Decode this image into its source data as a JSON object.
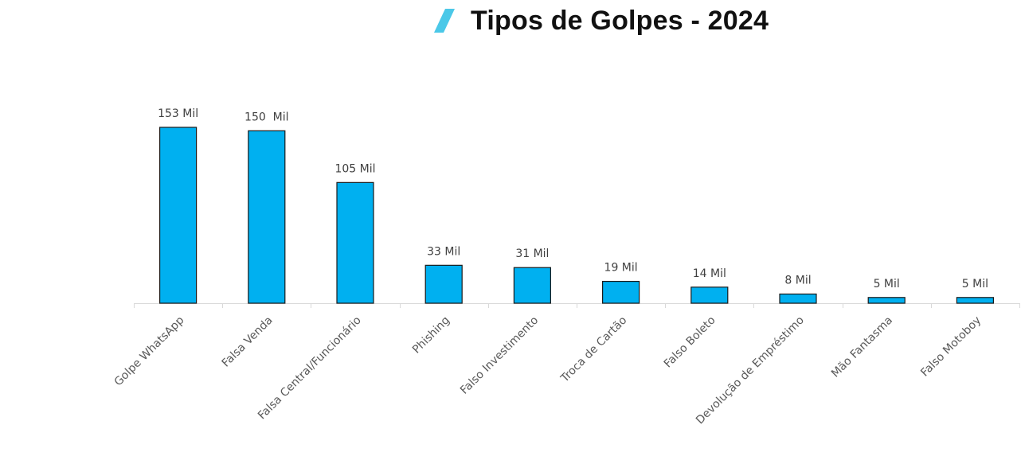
{
  "chart_data": {
    "type": "bar",
    "title": "Tipos de Golpes - 2024",
    "xlabel": "",
    "ylabel": "",
    "unit": "Mil",
    "ylim": [
      0,
      160
    ],
    "grid": false,
    "legend": "none",
    "bar_color": "#00B0F0",
    "bar_edge_color": "#1a1a1a",
    "accent_color": "#4BC8E8",
    "categories": [
      "Golpe WhatsApp",
      "Falsa Venda",
      "Falsa Central/Funcionário",
      "Phishing",
      "Falso Investimento",
      "Troca de Cartão",
      "Falso Boleto",
      "Devolução de Empréstimo",
      "Mão Fantasma",
      "Falso Motoboy"
    ],
    "values": [
      153,
      150,
      105,
      33,
      31,
      19,
      14,
      8,
      5,
      5
    ],
    "data_labels": [
      "153 Mil",
      "150  Mil",
      "105 Mil",
      "33 Mil",
      "31 Mil",
      "19 Mil",
      "14 Mil",
      "8 Mil",
      "5 Mil",
      "5 Mil"
    ]
  }
}
